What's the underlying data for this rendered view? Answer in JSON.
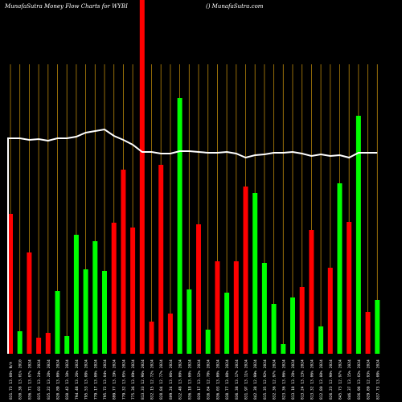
{
  "header": {
    "left_text": "MunafaSutra  Money Flow  Charts for WYBI",
    "right_text": "() MunafaSutra.com"
  },
  "colors": {
    "background": "#000000",
    "up": "#00ff00",
    "down": "#ff0000",
    "gridline": "#b8860b",
    "line": "#ffffff",
    "text": "#ffffff"
  },
  "chart_data": {
    "type": "bar",
    "title": "MunafaSutra  Money Flow  Charts for WYBI",
    "values": [
      {
        "dir": "down",
        "v": 174
      },
      {
        "dir": "up",
        "v": 28
      },
      {
        "dir": "down",
        "v": 126
      },
      {
        "dir": "down",
        "v": 20
      },
      {
        "dir": "down",
        "v": 26
      },
      {
        "dir": "up",
        "v": 78
      },
      {
        "dir": "up",
        "v": 22
      },
      {
        "dir": "up",
        "v": 148
      },
      {
        "dir": "up",
        "v": 105
      },
      {
        "dir": "up",
        "v": 140
      },
      {
        "dir": "up",
        "v": 103
      },
      {
        "dir": "down",
        "v": 163
      },
      {
        "dir": "down",
        "v": 229
      },
      {
        "dir": "down",
        "v": 157
      },
      {
        "dir": "down",
        "v": 445
      },
      {
        "dir": "down",
        "v": 40
      },
      {
        "dir": "down",
        "v": 235
      },
      {
        "dir": "down",
        "v": 50
      },
      {
        "dir": "up",
        "v": 318
      },
      {
        "dir": "up",
        "v": 80
      },
      {
        "dir": "down",
        "v": 161
      },
      {
        "dir": "up",
        "v": 30
      },
      {
        "dir": "down",
        "v": 115
      },
      {
        "dir": "up",
        "v": 76
      },
      {
        "dir": "down",
        "v": 115
      },
      {
        "dir": "down",
        "v": 208
      },
      {
        "dir": "up",
        "v": 200
      },
      {
        "dir": "up",
        "v": 113
      },
      {
        "dir": "up",
        "v": 62
      },
      {
        "dir": "up",
        "v": 12
      },
      {
        "dir": "up",
        "v": 70
      },
      {
        "dir": "down",
        "v": 83
      },
      {
        "dir": "down",
        "v": 154
      },
      {
        "dir": "up",
        "v": 34
      },
      {
        "dir": "down",
        "v": 107
      },
      {
        "dir": "up",
        "v": 212
      },
      {
        "dir": "down",
        "v": 164
      },
      {
        "dir": "up",
        "v": 296
      },
      {
        "dir": "down",
        "v": 52
      },
      {
        "dir": "up",
        "v": 67
      }
    ],
    "line": [
      268,
      268,
      266,
      267,
      265,
      268,
      268,
      270,
      275,
      277,
      279,
      271,
      266,
      260,
      251,
      251,
      249,
      249,
      252,
      252,
      251,
      250,
      250,
      251,
      249,
      244,
      247,
      248,
      250,
      250,
      251,
      249,
      246,
      248,
      246,
      247,
      244,
      250,
      250,
      250
    ],
    "xlabels": [
      "831.73 13.08% N/A",
      "830.38 13.01% 2010",
      "836.71 13.07% 2024",
      "835.03 13.24% 2024",
      "835.22 13.28% 2024",
      "820.89 13.00% 2024",
      "830.42 13.10% 2024",
      "794.48 13.26% 2024",
      "795.53 13.08% 2024",
      "779.17 13.00% 2024",
      "795.72 13.04% 2024",
      "899.77 13.19% 2024",
      "779.32 13.05% 2024",
      "775.36 13.09% 2024",
      "813.33 12.96% 2024",
      "832.15 12.72% 2024",
      "828.84 12.77% 2024",
      "809.24 13.06% 2024",
      "812.48 13.00% 2024",
      "836.18 13.00% 2024",
      "820.17 13.12% 2024",
      "816.84 12.78% 2024",
      "836.03 13.00% 2024",
      "838.77 13.08% 2024",
      "836.38 13.17% 2024",
      "831.97 13.11% 2024",
      "842.38 12.99% 2024",
      "815.35 12.92% 2024",
      "832.36 12.97% 2024",
      "823.36 13.06% 2024",
      "813.18 13.28% 2024",
      "813.24 13.13% 2024",
      "813.32 13.06% 2024",
      "812.80 13.00% 2024",
      "826.23 12.90% 2024",
      "845.73 12.97% 2024",
      "846.37 13.15% 2024",
      "836.98 13.02% 2024",
      "829.89 12.93% 2024",
      "837.73 13.08% 2024"
    ],
    "grid": true,
    "legend": "none"
  }
}
